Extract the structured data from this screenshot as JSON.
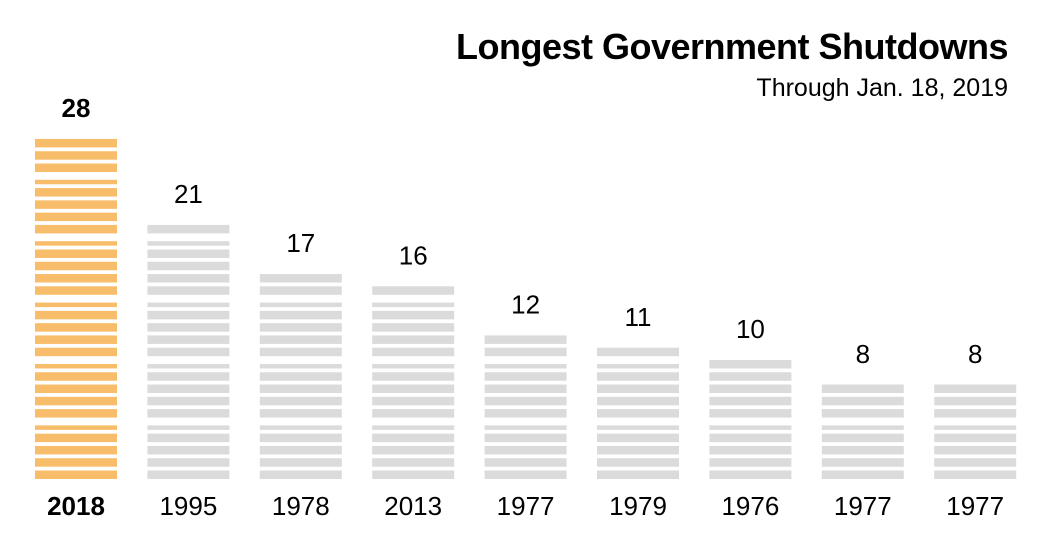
{
  "chart_data": {
    "type": "bar",
    "title": "Longest Government Shutdowns",
    "subtitle": "Through Jan. 18, 2019",
    "unit_note": "each stripe = 1 day",
    "categories": [
      "2018",
      "1995",
      "1978",
      "2013",
      "1977",
      "1979",
      "1976",
      "1977",
      "1977"
    ],
    "values": [
      28,
      21,
      17,
      16,
      12,
      11,
      10,
      8,
      8
    ],
    "highlight_index": 0,
    "ylim": [
      0,
      28
    ],
    "grid": false,
    "legend": "none",
    "colors": {
      "highlight": "#f8bd6b",
      "default": "#dbdbdb",
      "text": "#000000"
    }
  }
}
